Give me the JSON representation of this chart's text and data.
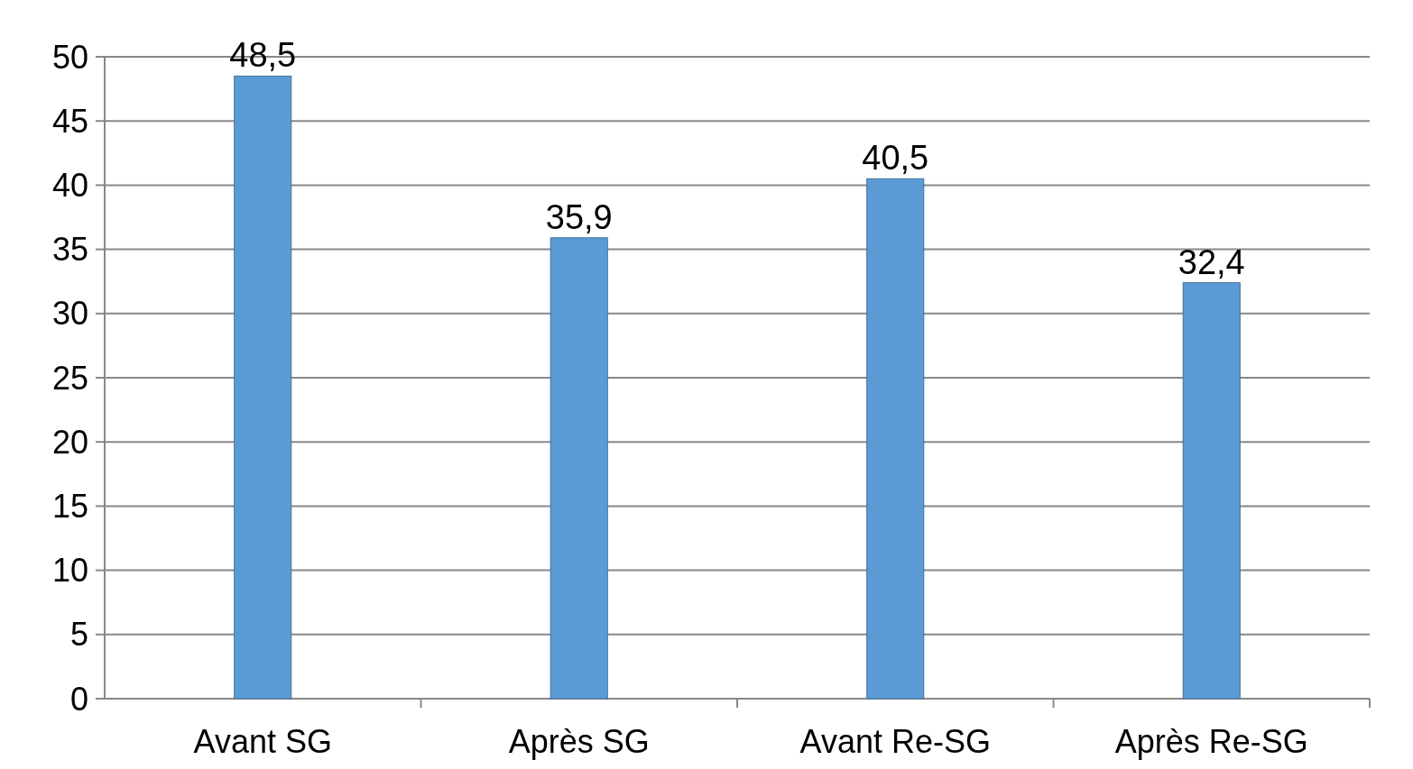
{
  "chart_data": {
    "type": "bar",
    "categories": [
      "Avant SG",
      "Après SG",
      "Avant Re-SG",
      "Après Re-SG"
    ],
    "values": [
      48.5,
      35.9,
      40.5,
      32.4
    ],
    "value_labels": [
      "48,5",
      "35,9",
      "40,5",
      "32,4"
    ],
    "color": "#5b9bd5",
    "ylim": [
      0,
      50
    ],
    "yticks": [
      0,
      5,
      10,
      15,
      20,
      25,
      30,
      35,
      40,
      45,
      50
    ],
    "grid": "y"
  }
}
